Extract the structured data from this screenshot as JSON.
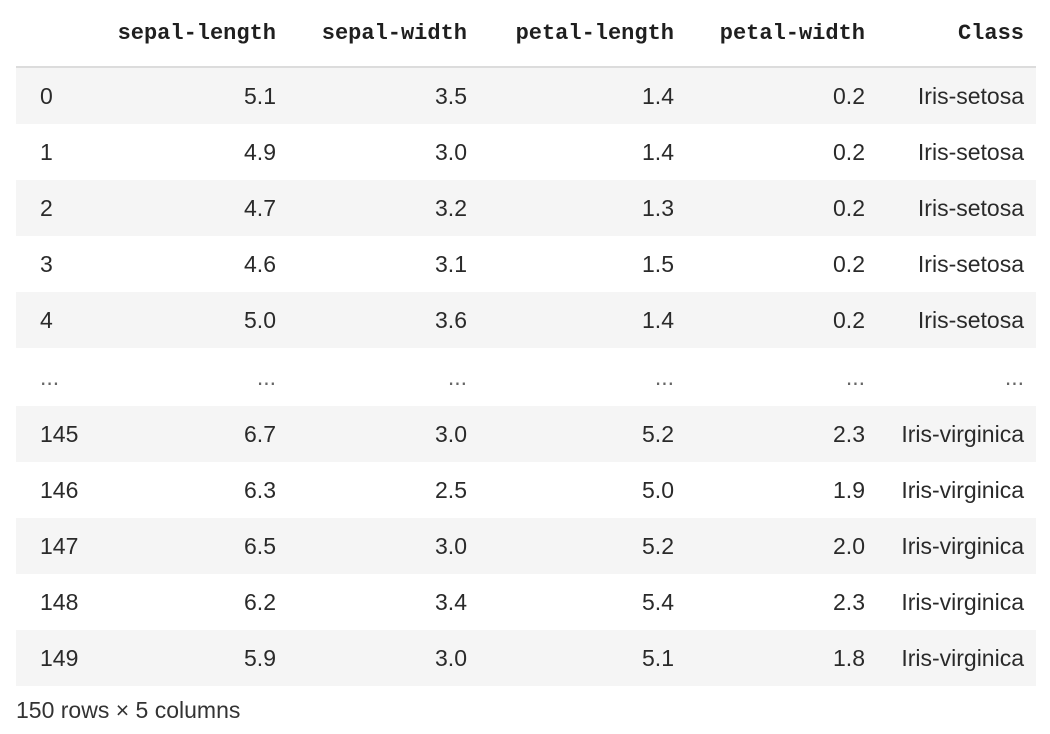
{
  "table": {
    "index_header": "",
    "columns": [
      "sepal-length",
      "sepal-width",
      "petal-length",
      "petal-width",
      "Class"
    ],
    "rows": [
      {
        "index": "0",
        "cells": [
          "5.1",
          "3.5",
          "1.4",
          "0.2",
          "Iris-setosa"
        ]
      },
      {
        "index": "1",
        "cells": [
          "4.9",
          "3.0",
          "1.4",
          "0.2",
          "Iris-setosa"
        ]
      },
      {
        "index": "2",
        "cells": [
          "4.7",
          "3.2",
          "1.3",
          "0.2",
          "Iris-setosa"
        ]
      },
      {
        "index": "3",
        "cells": [
          "4.6",
          "3.1",
          "1.5",
          "0.2",
          "Iris-setosa"
        ]
      },
      {
        "index": "4",
        "cells": [
          "5.0",
          "3.6",
          "1.4",
          "0.2",
          "Iris-setosa"
        ]
      },
      {
        "index": "...",
        "cells": [
          "...",
          "...",
          "...",
          "...",
          "..."
        ]
      },
      {
        "index": "145",
        "cells": [
          "6.7",
          "3.0",
          "5.2",
          "2.3",
          "Iris-virginica"
        ]
      },
      {
        "index": "146",
        "cells": [
          "6.3",
          "2.5",
          "5.0",
          "1.9",
          "Iris-virginica"
        ]
      },
      {
        "index": "147",
        "cells": [
          "6.5",
          "3.0",
          "5.2",
          "2.0",
          "Iris-virginica"
        ]
      },
      {
        "index": "148",
        "cells": [
          "6.2",
          "3.4",
          "5.4",
          "2.3",
          "Iris-virginica"
        ]
      },
      {
        "index": "149",
        "cells": [
          "5.9",
          "3.0",
          "5.1",
          "1.8",
          "Iris-virginica"
        ]
      }
    ]
  },
  "footer": {
    "shape_text": "150 rows × 5 columns"
  },
  "colors": {
    "stripe": "#f5f5f5",
    "header_rule": "#dcdcdc"
  }
}
